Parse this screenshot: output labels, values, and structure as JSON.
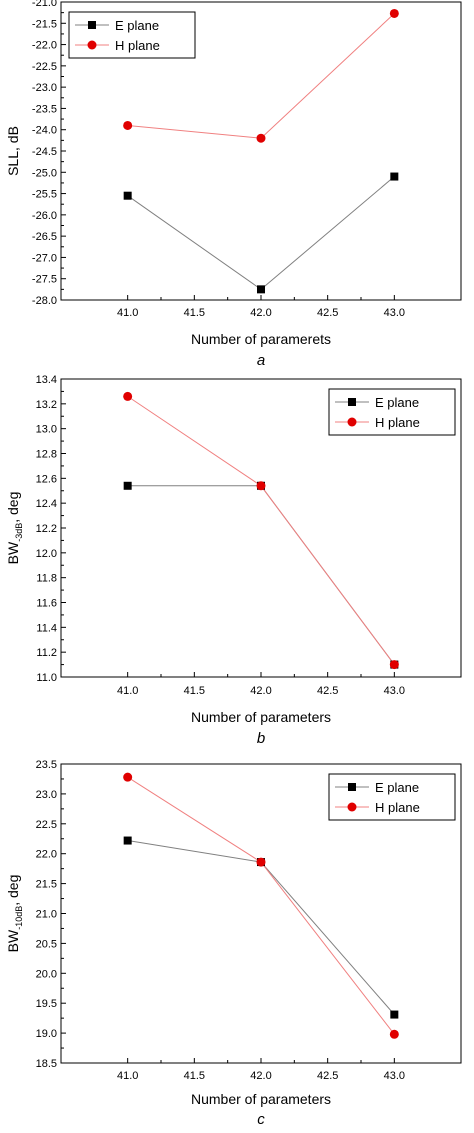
{
  "chart_data": [
    {
      "type": "line",
      "panel_label": "a",
      "xlabel": "Number of paramerets",
      "ylabel": "SLL, dB",
      "ylabel_sub": "",
      "ylabel_tail": "",
      "xlim": [
        40.5,
        43.5
      ],
      "ylim": [
        -28.0,
        -21.0
      ],
      "xticks": [
        "41.0",
        "41.5",
        "42.0",
        "42.5",
        "43.0"
      ],
      "yticks": [
        "-21.0",
        "-21.5",
        "-22.0",
        "-22.5",
        "-23.0",
        "-23.5",
        "-24.0",
        "-24.5",
        "-25.0",
        "-25.5",
        "-26.0",
        "-26.5",
        "-27.0",
        "-27.5",
        "-28.0"
      ],
      "x": [
        41.0,
        42.0,
        43.0
      ],
      "legend_position": "top-left",
      "series": [
        {
          "name": "E plane",
          "values": [
            -25.55,
            -27.75,
            -25.1
          ],
          "color": "#000000",
          "line_color": "#808080",
          "marker": "square"
        },
        {
          "name": "H plane",
          "values": [
            -23.9,
            -24.2,
            -21.27
          ],
          "color": "#e00000",
          "line_color": "#f08080",
          "marker": "circle"
        }
      ]
    },
    {
      "type": "line",
      "panel_label": "b",
      "xlabel": "Number of parameters",
      "ylabel": "BW",
      "ylabel_sub": "-3dB",
      "ylabel_tail": ", deg",
      "xlim": [
        40.5,
        43.5
      ],
      "ylim": [
        11.0,
        13.4
      ],
      "xticks": [
        "41.0",
        "41.5",
        "42.0",
        "42.5",
        "43.0"
      ],
      "yticks": [
        "11.0",
        "11.2",
        "11.4",
        "11.6",
        "11.8",
        "12.0",
        "12.2",
        "12.4",
        "12.6",
        "12.8",
        "13.0",
        "13.2",
        "13.4"
      ],
      "x": [
        41.0,
        42.0,
        43.0
      ],
      "legend_position": "top-right",
      "series": [
        {
          "name": "E plane",
          "values": [
            12.54,
            12.54,
            11.1
          ],
          "color": "#000000",
          "line_color": "#808080",
          "marker": "square"
        },
        {
          "name": "H plane",
          "values": [
            13.26,
            12.54,
            11.1
          ],
          "color": "#e00000",
          "line_color": "#f08080",
          "marker": "circle"
        }
      ]
    },
    {
      "type": "line",
      "panel_label": "c",
      "xlabel": "Number of parameters",
      "ylabel": "BW",
      "ylabel_sub": "-10dB",
      "ylabel_tail": ", deg",
      "xlim": [
        40.5,
        43.5
      ],
      "ylim": [
        18.5,
        23.5
      ],
      "xticks": [
        "41.0",
        "41.5",
        "42.0",
        "42.5",
        "43.0"
      ],
      "yticks": [
        "18.5",
        "19.0",
        "19.5",
        "20.0",
        "20.5",
        "21.0",
        "21.5",
        "22.0",
        "22.5",
        "23.0",
        "23.5"
      ],
      "x": [
        41.0,
        42.0,
        43.0
      ],
      "legend_position": "top-right",
      "series": [
        {
          "name": "E plane",
          "values": [
            22.22,
            21.86,
            19.31
          ],
          "color": "#000000",
          "line_color": "#808080",
          "marker": "square"
        },
        {
          "name": "H plane",
          "values": [
            23.28,
            21.86,
            18.98
          ],
          "color": "#e00000",
          "line_color": "#f08080",
          "marker": "circle"
        }
      ]
    }
  ]
}
